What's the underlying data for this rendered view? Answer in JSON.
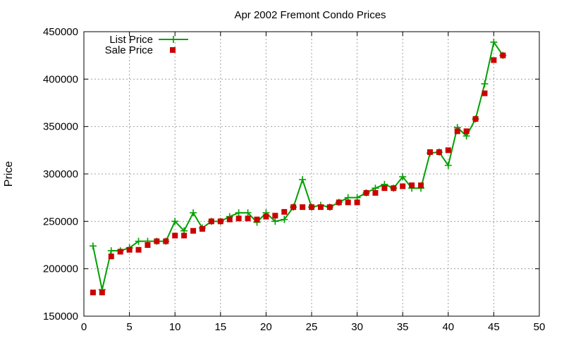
{
  "chart_data": {
    "type": "line",
    "title": "Apr 2002 Fremont Condo Prices",
    "xlabel": "",
    "ylabel": "Price",
    "xlim": [
      0,
      50
    ],
    "ylim": [
      150000,
      450000
    ],
    "xticks": [
      0,
      5,
      10,
      15,
      20,
      25,
      30,
      35,
      40,
      45,
      50
    ],
    "yticks": [
      150000,
      200000,
      250000,
      300000,
      350000,
      400000,
      450000
    ],
    "grid": true,
    "legend_position": "top-left",
    "series": [
      {
        "name": "List Price",
        "style": "line+plus",
        "color": "#00a000",
        "x": [
          1,
          2,
          3,
          4,
          5,
          6,
          7,
          8,
          9,
          10,
          11,
          12,
          13,
          14,
          15,
          16,
          17,
          18,
          19,
          20,
          21,
          22,
          23,
          24,
          25,
          26,
          27,
          28,
          29,
          30,
          31,
          32,
          33,
          34,
          35,
          36,
          37,
          38,
          39,
          40,
          41,
          42,
          43,
          44,
          45,
          46
        ],
        "values": [
          224000,
          178000,
          219000,
          219000,
          222000,
          229000,
          229000,
          229000,
          229000,
          250000,
          240000,
          259000,
          243000,
          250000,
          250000,
          255000,
          259000,
          259000,
          249000,
          259000,
          250000,
          252000,
          265000,
          294000,
          265000,
          267000,
          265000,
          270000,
          275000,
          275000,
          280000,
          285000,
          289000,
          285000,
          297000,
          285000,
          285000,
          322000,
          323000,
          309000,
          349000,
          340000,
          358000,
          395000,
          439000,
          425000
        ]
      },
      {
        "name": "Sale Price",
        "style": "square",
        "color": "#cc0000",
        "x": [
          1,
          2,
          3,
          4,
          5,
          6,
          7,
          8,
          9,
          10,
          11,
          12,
          13,
          14,
          15,
          16,
          17,
          18,
          19,
          20,
          21,
          22,
          23,
          24,
          25,
          26,
          27,
          28,
          29,
          30,
          31,
          32,
          33,
          34,
          35,
          36,
          37,
          38,
          39,
          40,
          41,
          42,
          43,
          44,
          45,
          46
        ],
        "values": [
          175000,
          175000,
          213000,
          218000,
          220000,
          220000,
          225000,
          229000,
          229000,
          235000,
          235000,
          240000,
          242000,
          250000,
          250000,
          252000,
          253000,
          253000,
          252000,
          255000,
          256000,
          260000,
          265000,
          265000,
          265000,
          265000,
          265000,
          270000,
          270000,
          270000,
          280000,
          280000,
          285000,
          285000,
          287000,
          288000,
          288000,
          323000,
          323000,
          325000,
          345000,
          345000,
          358000,
          385000,
          420000,
          425000
        ]
      }
    ]
  }
}
